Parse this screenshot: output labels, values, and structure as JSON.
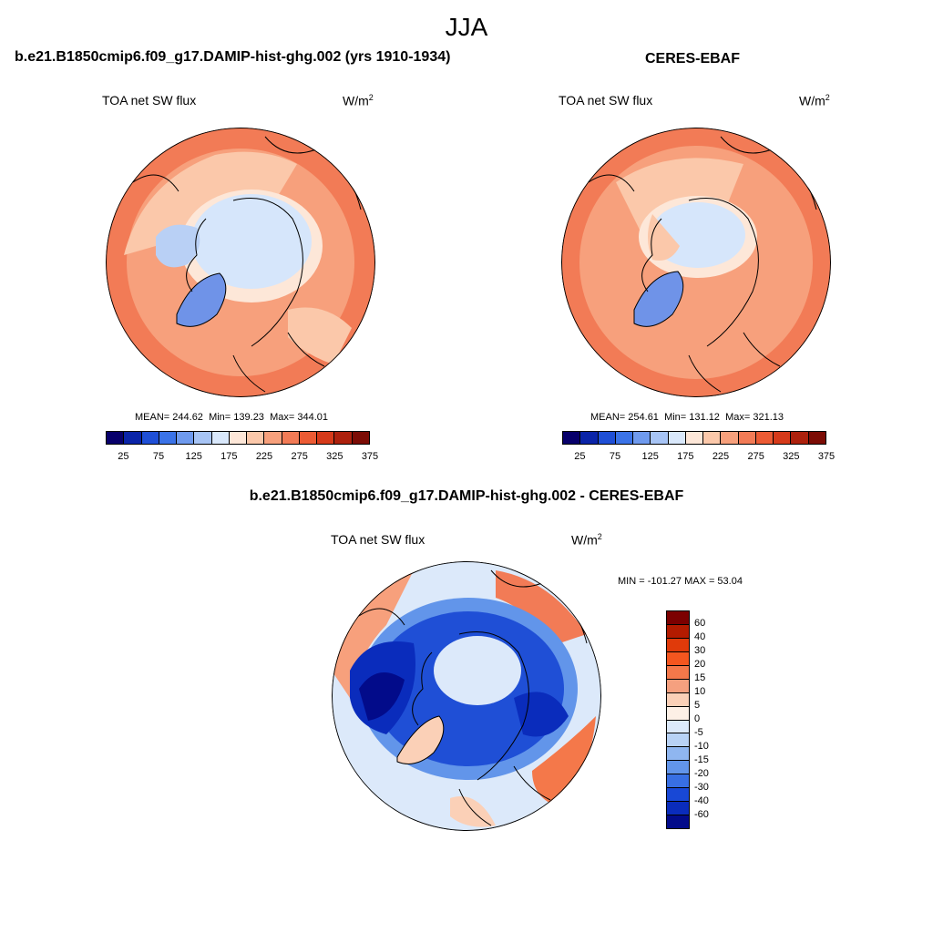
{
  "season": "JJA",
  "units_base": "W/m",
  "units_exp": "2",
  "panels": [
    {
      "case_title": "b.e21.B1850cmip6.f09_g17.DAMIP-hist-ghg.002 (yrs 1910-1934)",
      "label": "TOA net SW flux",
      "mean_label": "MEAN=",
      "mean": "244.62",
      "min_label": "Min=",
      "min": "139.23",
      "max_label": "Max=",
      "max": "344.01"
    },
    {
      "case_title": "CERES-EBAF",
      "label": "TOA net SW flux",
      "mean_label": "MEAN=",
      "mean": "254.61",
      "min_label": "Min=",
      "min": "131.12",
      "max_label": "Max=",
      "max": "321.13"
    }
  ],
  "diff_panel": {
    "case_title": "b.e21.B1850cmip6.f09_g17.DAMIP-hist-ghg.002 - CERES-EBAF",
    "label": "TOA net SW flux",
    "minmax": "MIN = -101.27 MAX =  53.04"
  },
  "abs_colorbar": {
    "colors": [
      "#08006b",
      "#0a24a8",
      "#1f4fd6",
      "#3b73e8",
      "#6f9aee",
      "#a7c4f5",
      "#d9e8fb",
      "#fde7d8",
      "#fbc8aa",
      "#f7a07c",
      "#f27b56",
      "#ec5b34",
      "#d63a1a",
      "#ad210d",
      "#7c0c05"
    ],
    "tick_labels": [
      "25",
      "75",
      "125",
      "175",
      "225",
      "275",
      "325",
      "375"
    ]
  },
  "diff_colorbar": {
    "colors": [
      "#7c0000",
      "#b31b00",
      "#e03a0a",
      "#f5561f",
      "#f4784a",
      "#f5a07f",
      "#fbd0b7",
      "#fdf0e6",
      "#dce9fa",
      "#b8d2f5",
      "#8fb6f0",
      "#6295ea",
      "#386fe3",
      "#1848d6",
      "#0a2cbc",
      "#020b8a"
    ],
    "tick_labels": [
      "60",
      "40",
      "30",
      "20",
      "15",
      "10",
      "5",
      "0",
      "-5",
      "-10",
      "-15",
      "-20",
      "-30",
      "-40",
      "-60"
    ]
  },
  "colors": {
    "ice": "#d6e6fb",
    "sea_ice_light": "#b9d0f5",
    "greenland": "#6f93e8",
    "ocean_warm": "#f27b56",
    "ocean_mid": "#f7a07c",
    "ocean_light": "#fbc8aa",
    "diff_blue": "#1f4fd6",
    "diff_dark": "#0a24a8"
  }
}
